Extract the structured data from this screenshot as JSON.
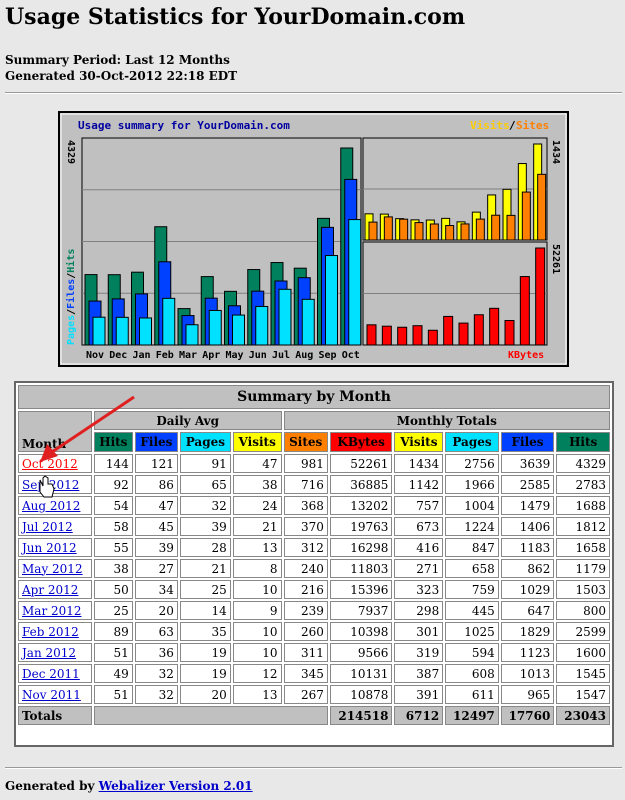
{
  "header": {
    "title": "Usage Statistics for YourDomain.com",
    "period": "Summary Period: Last 12 Months",
    "generated": "Generated 30-Oct-2012 22:18 EDT"
  },
  "graph": {
    "title": "Usage summary for YourDomain.com",
    "legend_visits": "Visits",
    "legend_sep": "/",
    "legend_sites": "Sites",
    "y_left_max": "4329",
    "y_left_label_pages": "Pages",
    "y_left_label_files": "Files",
    "y_left_label_hits": "Hits",
    "y_right_top_max": "1434",
    "y_right_bottom_max": "52261",
    "kbytes_label": "KBytes",
    "months": [
      "Nov",
      "Dec",
      "Jan",
      "Feb",
      "Mar",
      "Apr",
      "May",
      "Jun",
      "Jul",
      "Aug",
      "Sep",
      "Oct"
    ],
    "hits": [
      1547,
      1545,
      1600,
      2599,
      800,
      1503,
      1179,
      1658,
      1812,
      1688,
      2783,
      4329
    ],
    "files": [
      965,
      1013,
      1123,
      1829,
      647,
      1029,
      862,
      1183,
      1406,
      1479,
      2585,
      3639
    ],
    "pages": [
      611,
      608,
      594,
      1025,
      445,
      759,
      658,
      847,
      1224,
      1004,
      1966,
      2756
    ],
    "visits": [
      391,
      387,
      319,
      301,
      298,
      323,
      271,
      416,
      673,
      757,
      1142,
      1434
    ],
    "sites": [
      267,
      345,
      311,
      260,
      239,
      216,
      240,
      312,
      370,
      368,
      716,
      981
    ],
    "kbytes": [
      10878,
      10131,
      9566,
      10398,
      7937,
      15396,
      11803,
      16298,
      19763,
      13202,
      36885,
      52261
    ]
  },
  "table": {
    "title": "Summary by Month",
    "month_header": "Month",
    "daily_avg": "Daily Avg",
    "monthly_totals": "Monthly Totals",
    "cols_daily": [
      "Hits",
      "Files",
      "Pages",
      "Visits"
    ],
    "cols_monthly": [
      "Sites",
      "KBytes",
      "Visits",
      "Pages",
      "Files",
      "Hits"
    ],
    "rows": [
      {
        "month": "Oct 2012",
        "d": [
          "144",
          "121",
          "91",
          "47"
        ],
        "m": [
          "981",
          "52261",
          "1434",
          "2756",
          "3639",
          "4329"
        ]
      },
      {
        "month": "Sep 2012",
        "d": [
          "92",
          "86",
          "65",
          "38"
        ],
        "m": [
          "716",
          "36885",
          "1142",
          "1966",
          "2585",
          "2783"
        ]
      },
      {
        "month": "Aug 2012",
        "d": [
          "54",
          "47",
          "32",
          "24"
        ],
        "m": [
          "368",
          "13202",
          "757",
          "1004",
          "1479",
          "1688"
        ]
      },
      {
        "month": "Jul 2012",
        "d": [
          "58",
          "45",
          "39",
          "21"
        ],
        "m": [
          "370",
          "19763",
          "673",
          "1224",
          "1406",
          "1812"
        ]
      },
      {
        "month": "Jun 2012",
        "d": [
          "55",
          "39",
          "28",
          "13"
        ],
        "m": [
          "312",
          "16298",
          "416",
          "847",
          "1183",
          "1658"
        ]
      },
      {
        "month": "May 2012",
        "d": [
          "38",
          "27",
          "21",
          "8"
        ],
        "m": [
          "240",
          "11803",
          "271",
          "658",
          "862",
          "1179"
        ]
      },
      {
        "month": "Apr 2012",
        "d": [
          "50",
          "34",
          "25",
          "10"
        ],
        "m": [
          "216",
          "15396",
          "323",
          "759",
          "1029",
          "1503"
        ]
      },
      {
        "month": "Mar 2012",
        "d": [
          "25",
          "20",
          "14",
          "9"
        ],
        "m": [
          "239",
          "7937",
          "298",
          "445",
          "647",
          "800"
        ]
      },
      {
        "month": "Feb 2012",
        "d": [
          "89",
          "63",
          "35",
          "10"
        ],
        "m": [
          "260",
          "10398",
          "301",
          "1025",
          "1829",
          "2599"
        ]
      },
      {
        "month": "Jan 2012",
        "d": [
          "51",
          "36",
          "19",
          "10"
        ],
        "m": [
          "311",
          "9566",
          "319",
          "594",
          "1123",
          "1600"
        ]
      },
      {
        "month": "Dec 2011",
        "d": [
          "49",
          "32",
          "19",
          "12"
        ],
        "m": [
          "345",
          "10131",
          "387",
          "608",
          "1013",
          "1545"
        ]
      },
      {
        "month": "Nov 2011",
        "d": [
          "51",
          "32",
          "20",
          "13"
        ],
        "m": [
          "267",
          "10878",
          "391",
          "611",
          "965",
          "1547"
        ]
      }
    ],
    "totals_label": "Totals",
    "totals": [
      "214518",
      "6712",
      "12497",
      "17760",
      "23043"
    ]
  },
  "footer": {
    "prefix": "Generated by",
    "link": "Webalizer Version 2.01"
  },
  "colors": {
    "hits": "#00805c",
    "files": "#0040ff",
    "pages": "#00e0ff",
    "visits": "#ffff00",
    "sites": "#ff8000",
    "kbytes": "#ff0000",
    "arrow": "#e02020"
  }
}
